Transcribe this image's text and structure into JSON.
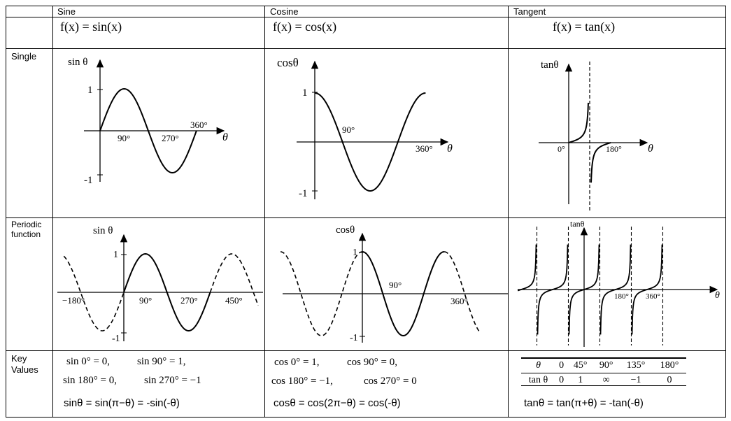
{
  "headers": {
    "sine": "Sine",
    "cosine": "Cosine",
    "tangent": "Tangent"
  },
  "formulas": {
    "sine": "f(x) = sin(x)",
    "cosine": "f(x) = cos(x)",
    "tangent": "f(x) = tan(x)"
  },
  "row_labels": {
    "single": "Single",
    "periodic_line1": "Periodic",
    "periodic_line2": "function",
    "key_line1": "Key",
    "key_line2": "Values"
  },
  "graph_labels": {
    "sin_single": {
      "axis_y": "sin θ",
      "axis_x": "θ",
      "one": "1",
      "neg_one": "-1",
      "t90": "90°",
      "t270": "270°",
      "t360": "360°"
    },
    "cos_single": {
      "axis_y": "cosθ",
      "axis_x": "θ",
      "one": "1",
      "neg_one": "-1",
      "t90": "90°",
      "t360": "360°"
    },
    "tan_single": {
      "axis_y": "tanθ",
      "axis_x": "θ",
      "t0": "0°",
      "t180": "180°"
    },
    "sin_periodic": {
      "axis_y": "sin θ",
      "one": "1",
      "neg_one": "-1",
      "tm180": "−180°",
      "t90": "90°",
      "t270": "270°",
      "t450": "450°"
    },
    "cos_periodic": {
      "axis_y": "cosθ",
      "one": "1",
      "neg_one": "-1",
      "t90": "90°",
      "t360": "360°"
    },
    "tan_periodic": {
      "axis_y": "tanθ",
      "axis_x": "θ",
      "t180": "180°",
      "t360": "360°"
    }
  },
  "key_values": {
    "sine": {
      "line1a": "sin 0° = 0,",
      "line1b": "sin 90° = 1,",
      "line2a": "sin 180° = 0,",
      "line2b": "sin 270° = −1",
      "identity": "sinθ = sin(π−θ) = -sin(-θ)"
    },
    "cosine": {
      "line1a": "cos 0° = 1,",
      "line1b": "cos 90° = 0,",
      "line2a": "cos 180° = −1,",
      "line2b": "cos 270° = 0",
      "identity": "cosθ = cos(2π−θ) = cos(-θ)"
    },
    "tangent": {
      "table_headers": [
        "θ",
        "0",
        "45°",
        "90°",
        "135°",
        "180°"
      ],
      "table_values": [
        "tan θ",
        "0",
        "1",
        "∞",
        "−1",
        "0"
      ],
      "identity": "tanθ = tan(π+θ) = -tan(-θ)"
    }
  },
  "colors": {
    "line": "#000000",
    "background": "#ffffff"
  }
}
